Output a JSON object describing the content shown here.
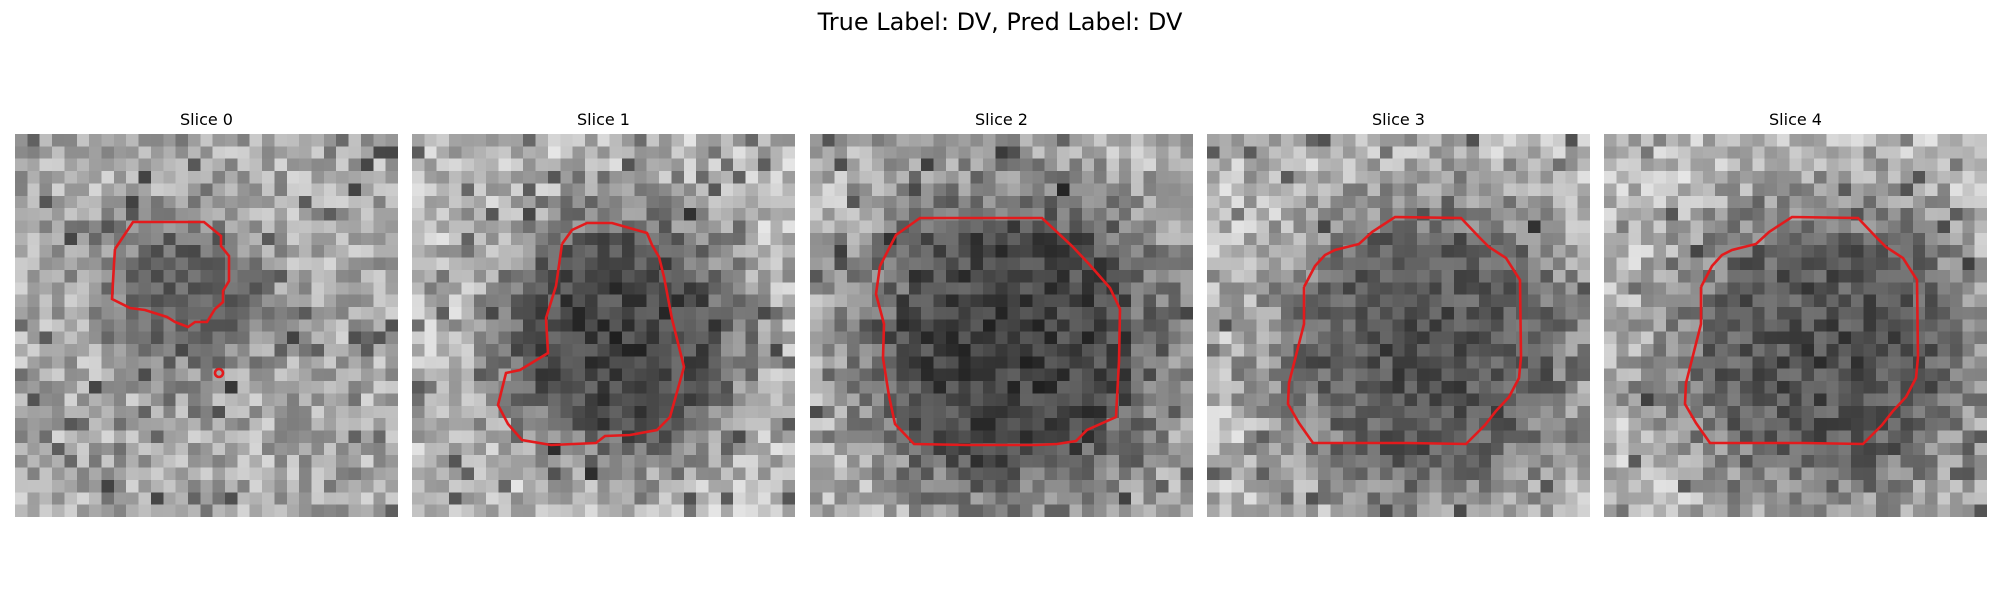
{
  "figure": {
    "title": "True Label: DV, Pred Label: DV"
  },
  "slices": [
    {
      "title": "Slice 0"
    },
    {
      "title": "Slice 1"
    },
    {
      "title": "Slice 2"
    },
    {
      "title": "Slice 3"
    },
    {
      "title": "Slice 4"
    }
  ],
  "colors": {
    "contour": "#e31a1c",
    "background": "#ffffff"
  }
}
